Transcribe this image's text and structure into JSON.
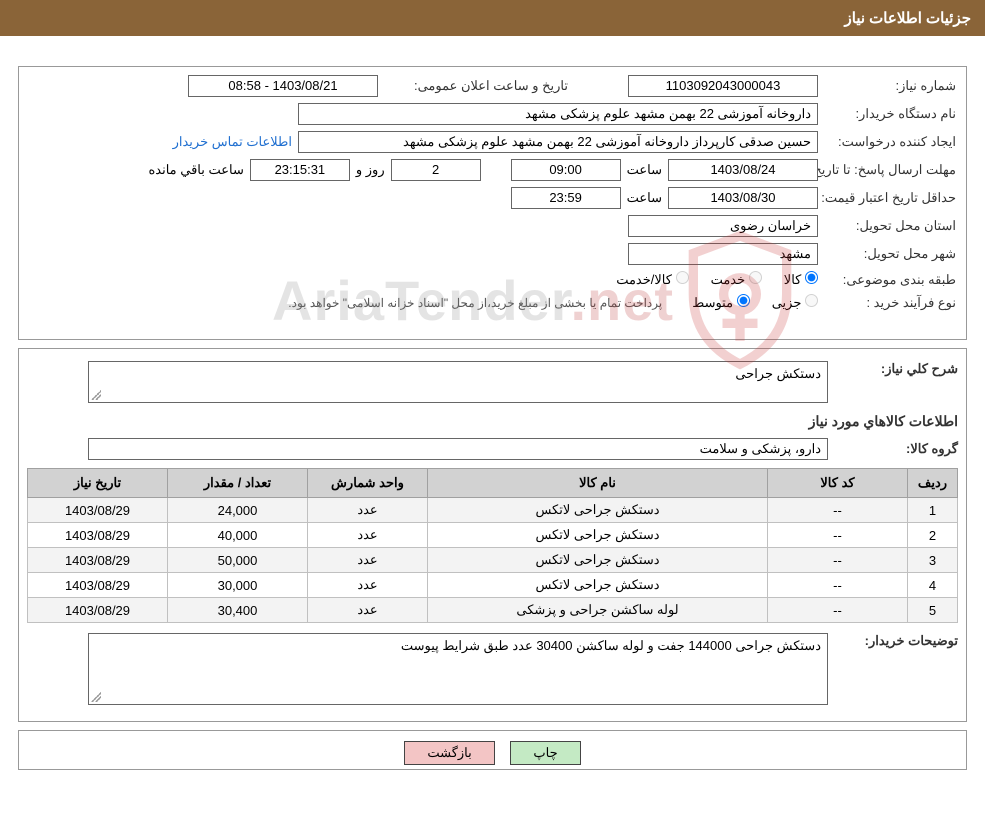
{
  "colors": {
    "header_bg": "#8a6438",
    "header_fg": "#ffffff",
    "border": "#999999",
    "field_border": "#666666",
    "link": "#1f6fd0",
    "th_bg": "#d2d2d2",
    "row_alt_bg": "#f3f3f3",
    "btn_print_bg": "#c4eac4",
    "btn_back_bg": "#f3c5c5",
    "watermark_shield": "#c53030"
  },
  "header": {
    "title": "جزئیات اطلاعات نیاز"
  },
  "labels": {
    "need_no": "شماره نیاز:",
    "announce_dt": "تاریخ و ساعت اعلان عمومی:",
    "buyer_org": "نام دستگاه خریدار:",
    "requester": "ایجاد کننده درخواست:",
    "contact_link": "اطلاعات تماس خریدار",
    "reply_deadline": "مهلت ارسال پاسخ: تا تاریخ:",
    "time_word": "ساعت",
    "days_and": "روز و",
    "time_remaining_suffix": "ساعت باقي مانده",
    "price_validity": "حداقل تاریخ اعتبار قیمت: تا تاریخ:",
    "delivery_province": "استان محل تحویل:",
    "delivery_city": "شهر محل تحویل:",
    "category": "طبقه بندی موضوعی:",
    "purchase_type": "نوع فرآیند خرید :",
    "category_goods": "کالا",
    "category_service": "خدمت",
    "category_goods_service": "کالا/خدمت",
    "ptype_partial": "جزیی",
    "ptype_medium": "متوسط",
    "ptype_note": "پرداخت تمام یا بخشی از مبلغ خرید،از محل \"اسناد خزانه اسلامی\" خواهد بود.",
    "need_desc": "شرح کلي نیاز:",
    "items_title": "اطلاعات کالاهاي مورد نیاز",
    "goods_group": "گروه کالا:",
    "buyer_notes": "توضیحات خریدار:"
  },
  "fields": {
    "need_no": "1103092043000043",
    "announce_dt": "1403/08/21 - 08:58",
    "buyer_org": "داروخانه آموزشی 22 بهمن مشهد   علوم پزشکی مشهد",
    "requester": "حسین صدقی کارپرداز داروخانه آموزشی 22 بهمن مشهد   علوم پزشکی مشهد",
    "reply_deadline_date": "1403/08/24",
    "reply_deadline_time": "09:00",
    "days_remaining": "2",
    "time_remaining": "23:15:31",
    "price_validity_date": "1403/08/30",
    "price_validity_time": "23:59",
    "delivery_province": "خراسان رضوی",
    "delivery_city": "مشهد",
    "need_desc": "دستکش جراحی",
    "goods_group": "دارو، پزشکی و سلامت",
    "buyer_notes": "دستکش جراحی 144000 جفت و لوله ساکشن 30400 عدد طبق شرایط پیوست"
  },
  "table": {
    "headers": [
      "ردیف",
      "کد کالا",
      "نام کالا",
      "واحد شمارش",
      "تعداد / مقدار",
      "تاریخ نیاز"
    ],
    "col_widths": [
      "50px",
      "140px",
      "auto",
      "120px",
      "140px",
      "140px"
    ],
    "rows": [
      [
        "1",
        "--",
        "دستکش جراحی لاتکس",
        "عدد",
        "24,000",
        "1403/08/29"
      ],
      [
        "2",
        "--",
        "دستکش جراحی لاتکس",
        "عدد",
        "40,000",
        "1403/08/29"
      ],
      [
        "3",
        "--",
        "دستکش جراحی لاتکس",
        "عدد",
        "50,000",
        "1403/08/29"
      ],
      [
        "4",
        "--",
        "دستکش جراحی لاتکس",
        "عدد",
        "30,000",
        "1403/08/29"
      ],
      [
        "5",
        "--",
        "لوله ساکشن جراحی و پزشکی",
        "عدد",
        "30,400",
        "1403/08/29"
      ]
    ]
  },
  "buttons": {
    "print": "چاپ",
    "back": "بازگشت"
  },
  "watermark": {
    "text_main": "AriaTender",
    "text_suffix": ".net"
  }
}
